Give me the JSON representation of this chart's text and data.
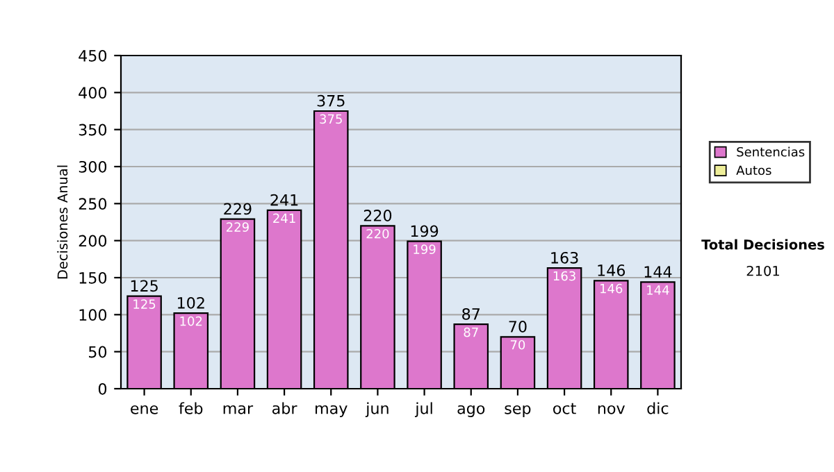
{
  "chart_data": {
    "type": "bar",
    "ylabel": "Decisiones Anual",
    "categories": [
      "ene",
      "feb",
      "mar",
      "abr",
      "may",
      "jun",
      "jul",
      "ago",
      "sep",
      "oct",
      "nov",
      "dic"
    ],
    "stacked": true,
    "series": [
      {
        "name": "Sentencias",
        "color": "#dd77cc",
        "values": [
          125,
          102,
          229,
          241,
          375,
          220,
          199,
          87,
          70,
          163,
          146,
          144
        ],
        "value_labels": [
          "125",
          "102",
          "229",
          "241",
          "375",
          "220",
          "199",
          "87",
          "70",
          "163",
          "146",
          "144"
        ]
      },
      {
        "name": "Autos",
        "color": "#eeee99",
        "values": [
          0,
          0,
          0,
          0,
          0,
          0,
          0,
          0,
          0,
          0,
          0,
          0
        ]
      }
    ],
    "totals": [
      "125",
      "102",
      "229",
      "241",
      "375",
      "220",
      "199",
      "87",
      "70",
      "163",
      "146",
      "144"
    ],
    "ylim": [
      0,
      450
    ],
    "yticks": [
      0,
      50,
      100,
      150,
      200,
      250,
      300,
      350,
      400,
      450
    ],
    "grid": "y",
    "legend": "right",
    "annotations": [
      "Total Decisiones",
      "2101"
    ]
  }
}
